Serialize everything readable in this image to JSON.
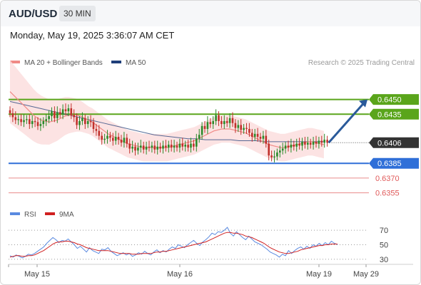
{
  "header": {
    "symbol": "AUD/USD",
    "timeframe": "30 MIN"
  },
  "datetime": "Monday, May 19, 2025 3:36:07 AM CET",
  "legend": {
    "ma_label": "MA 20 + Bollinger Bands",
    "ma50_label": "MA 50",
    "credit": "Research © 2025 Trading Central",
    "rsi_label": "RSI",
    "rsi_ma_label": "9MA"
  },
  "colors": {
    "ma20": "#f08a86",
    "ma50": "#1f3f7a",
    "band": "#fbdede",
    "resistance": "#5aa51b",
    "support": "#2f6fd8",
    "target": "#e05a5a",
    "bull": "#2a8a2a",
    "bear": "#c0302b",
    "arrow": "#2a5a9a",
    "current_bg": "#333333",
    "rsi": "#5a8ae0",
    "rsi_ma": "#d02020"
  },
  "chart_data": [
    {
      "type": "candlestick",
      "title": "AUD/USD 30 MIN",
      "ylim": [
        0.6346,
        0.6478
      ],
      "x_ticks": [
        {
          "label": "May 15",
          "index": 8
        },
        {
          "label": "May 16",
          "index": 57
        },
        {
          "label": "May 19",
          "index": 106
        },
        {
          "label": "May 29",
          "index": 124
        }
      ],
      "candles_close": [
        0.6436,
        0.6432,
        0.6429,
        0.643,
        0.6427,
        0.6429,
        0.643,
        0.6425,
        0.6428,
        0.6427,
        0.6423,
        0.6425,
        0.6428,
        0.643,
        0.6433,
        0.6438,
        0.6431,
        0.6437,
        0.6435,
        0.644,
        0.6438,
        0.6441,
        0.6434,
        0.6432,
        0.6424,
        0.6428,
        0.6431,
        0.6425,
        0.6428,
        0.6427,
        0.642,
        0.6418,
        0.6413,
        0.6409,
        0.641,
        0.6413,
        0.6411,
        0.6408,
        0.6412,
        0.6409,
        0.6406,
        0.6411,
        0.6405,
        0.64,
        0.6402,
        0.6398,
        0.6401,
        0.6403,
        0.6399,
        0.6402,
        0.6401,
        0.6403,
        0.6399,
        0.6402,
        0.64,
        0.6403,
        0.6401,
        0.6404,
        0.6401,
        0.6403,
        0.6401,
        0.6405,
        0.6402,
        0.6404,
        0.6401,
        0.6405,
        0.6402,
        0.641,
        0.6414,
        0.6423,
        0.642,
        0.6427,
        0.6425,
        0.6428,
        0.6434,
        0.6428,
        0.6425,
        0.6428,
        0.6426,
        0.6431,
        0.6426,
        0.6421,
        0.6424,
        0.6419,
        0.6421,
        0.642,
        0.6416,
        0.6412,
        0.6415,
        0.6412,
        0.641,
        0.6413,
        0.6405,
        0.6393,
        0.6391,
        0.6392,
        0.6396,
        0.6398,
        0.64,
        0.6403,
        0.6401,
        0.6404,
        0.6402,
        0.6405,
        0.6403,
        0.6407,
        0.6404,
        0.6406,
        0.6404,
        0.6407,
        0.6405,
        0.6408,
        0.6406,
        0.6409,
        0.6406
      ],
      "ma20": [
        0.6458,
        0.6454,
        0.645,
        0.6446,
        0.6442,
        0.6438,
        0.6434,
        0.6431,
        0.6429,
        0.6428,
        0.6427,
        0.6428,
        0.6429,
        0.6431,
        0.6433,
        0.6434,
        0.6434,
        0.6434,
        0.6433,
        0.6431,
        0.6429,
        0.6427,
        0.6424,
        0.6421,
        0.6418,
        0.6415,
        0.6413,
        0.6411,
        0.6409,
        0.6407,
        0.6405,
        0.6404,
        0.6403,
        0.6402,
        0.6401,
        0.6401,
        0.6401,
        0.6401,
        0.6401,
        0.6401,
        0.6401,
        0.6402,
        0.6403,
        0.6404,
        0.6405,
        0.6406,
        0.6407,
        0.6408,
        0.641,
        0.6412,
        0.6414,
        0.6416,
        0.6418,
        0.6419,
        0.642,
        0.642,
        0.642,
        0.6419,
        0.6418,
        0.6417,
        0.6416,
        0.6414,
        0.6412,
        0.641,
        0.6408,
        0.6406,
        0.6404,
        0.6403,
        0.6402,
        0.6401,
        0.6401,
        0.6402,
        0.6403,
        0.6404,
        0.6405,
        0.6406,
        0.6407,
        0.6407,
        0.6406,
        0.6405,
        0.6404
      ],
      "ma50": [
        0.6448,
        0.6446,
        0.6444,
        0.6442,
        0.644,
        0.6438,
        0.6436,
        0.6434,
        0.6432,
        0.643,
        0.6428,
        0.6426,
        0.6424,
        0.6422,
        0.642,
        0.6418,
        0.6416,
        0.6414,
        0.6413,
        0.6412,
        0.6411,
        0.641,
        0.641,
        0.6409,
        0.6409,
        0.6409,
        0.6409,
        0.6408,
        0.6408,
        0.6408,
        0.6407,
        0.6407,
        0.6407,
        0.6407,
        0.6407,
        0.6407,
        0.6407,
        0.6407
      ],
      "levels": [
        {
          "value": 0.645,
          "label": "0.6450",
          "kind": "resistance"
        },
        {
          "value": 0.6435,
          "label": "0.6435",
          "kind": "resistance"
        },
        {
          "value": 0.6406,
          "label": "0.6406",
          "kind": "current"
        },
        {
          "value": 0.6385,
          "label": "0.6385",
          "kind": "support"
        },
        {
          "value": 0.637,
          "label": "0.6370",
          "kind": "target"
        },
        {
          "value": 0.6355,
          "label": "0.6355",
          "kind": "target"
        }
      ],
      "forecast_arrow": {
        "from": {
          "index": 114,
          "value": 0.6406
        },
        "to": {
          "index": 124,
          "value": 0.645
        }
      }
    },
    {
      "type": "line",
      "title": "RSI",
      "ylim": [
        25,
        80
      ],
      "y_ticks": [
        70,
        50,
        30
      ],
      "series": [
        {
          "name": "RSI",
          "values": [
            35,
            33,
            36,
            34,
            32,
            34,
            37,
            36,
            38,
            41,
            44,
            47,
            52,
            56,
            60,
            57,
            53,
            56,
            55,
            58,
            54,
            50,
            45,
            48,
            44,
            40,
            46,
            42,
            40,
            38,
            44,
            43,
            46,
            41,
            38,
            35,
            37,
            39,
            36,
            38,
            34,
            36,
            39,
            37,
            41,
            38,
            36,
            40,
            43,
            39,
            42,
            40,
            44,
            47,
            45,
            50,
            48,
            46,
            50,
            53,
            56,
            52,
            49,
            54,
            57,
            61,
            66,
            64,
            68,
            67,
            70,
            74,
            66,
            62,
            68,
            64,
            60,
            57,
            62,
            58,
            54,
            52,
            50,
            47,
            44,
            40,
            38,
            36,
            33,
            37,
            35,
            42,
            38,
            42,
            45,
            47,
            44,
            48,
            45,
            50,
            48,
            52,
            49,
            53,
            50,
            55,
            52,
            50
          ]
        },
        {
          "name": "9MA",
          "values": [
            33,
            34,
            35,
            35,
            34,
            34,
            35,
            35,
            36,
            38,
            40,
            42,
            45,
            48,
            51,
            53,
            54,
            54,
            55,
            55,
            54,
            53,
            51,
            50,
            48,
            46,
            45,
            44,
            43,
            42,
            42,
            42,
            42,
            41,
            40,
            39,
            38,
            38,
            38,
            38,
            37,
            37,
            37,
            38,
            38,
            38,
            38,
            39,
            40,
            40,
            41,
            41,
            42,
            43,
            44,
            45,
            46,
            47,
            48,
            49,
            50,
            51,
            52,
            53,
            54,
            56,
            58,
            60,
            62,
            64,
            66,
            67,
            67,
            66,
            66,
            65,
            64,
            62,
            61,
            60,
            58,
            56,
            54,
            52,
            49,
            46,
            44,
            42,
            40,
            39,
            38,
            38,
            39,
            40,
            41,
            43,
            44,
            45,
            46,
            47,
            48,
            49,
            49,
            50,
            50,
            51,
            51,
            51
          ]
        }
      ]
    }
  ]
}
